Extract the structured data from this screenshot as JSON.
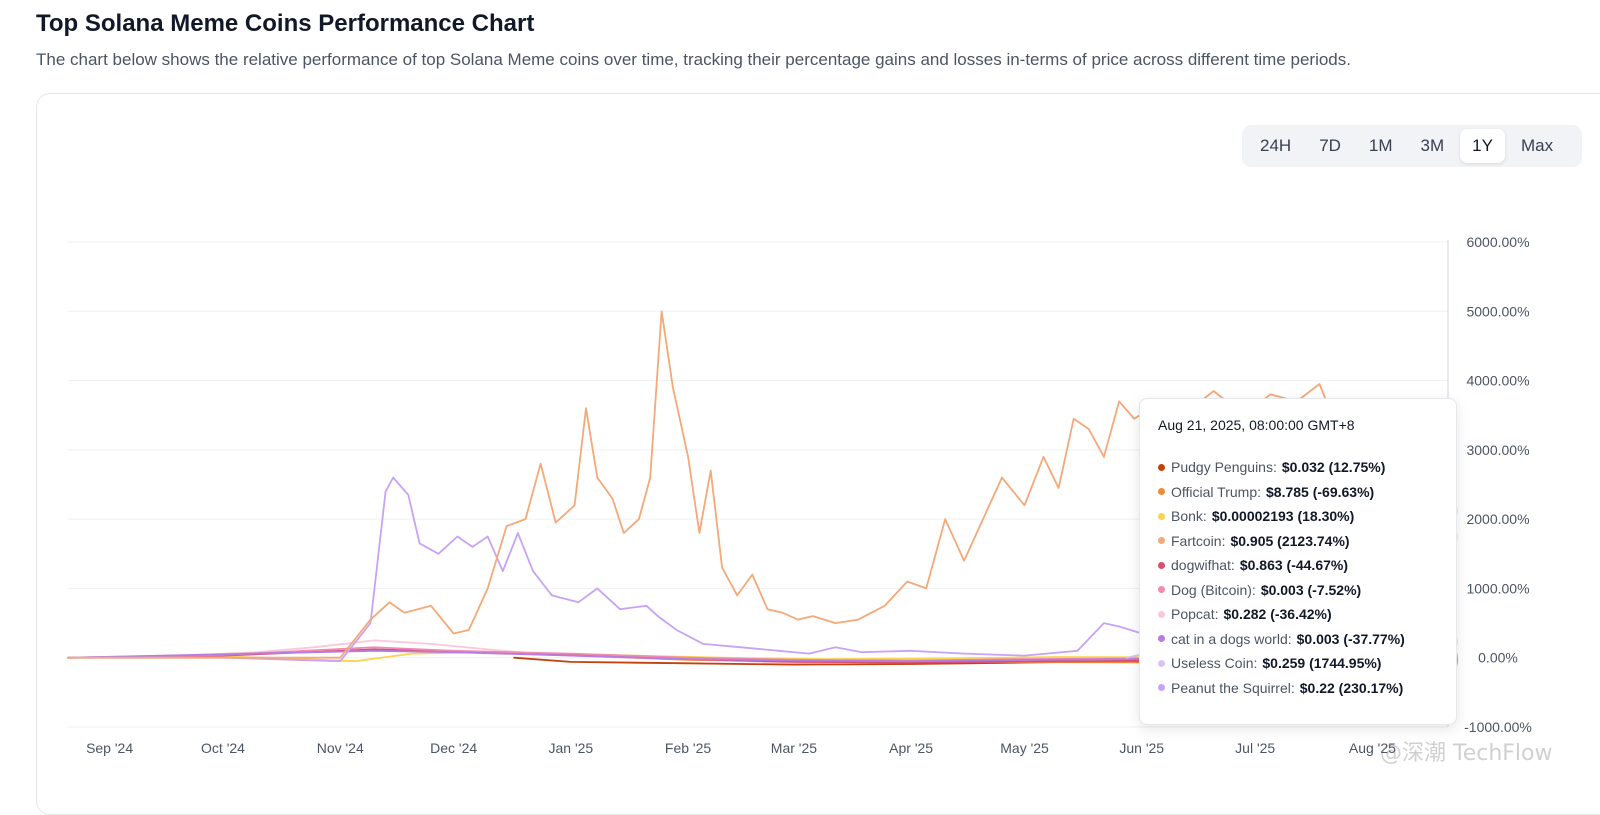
{
  "page": {
    "title": "Top Solana Meme Coins Performance Chart",
    "subtitle": "The chart below shows the relative performance of top Solana Meme coins over time, tracking their percentage gains and losses in-terms of price across different time periods."
  },
  "range_selector": {
    "options": [
      "24H",
      "7D",
      "1M",
      "3M",
      "1Y",
      "Max"
    ],
    "active": "1Y"
  },
  "tooltip": {
    "date": "Aug 21, 2025, 08:00:00 GMT+8",
    "rows": [
      {
        "name": "Pudgy Penguins:",
        "value": "$0.032 (12.75%)",
        "color": "#c2410c"
      },
      {
        "name": "Official Trump:",
        "value": "$8.785 (-69.63%)",
        "color": "#ea8a3a"
      },
      {
        "name": "Bonk:",
        "value": "$0.00002193 (18.30%)",
        "color": "#fcd34d"
      },
      {
        "name": "Fartcoin:",
        "value": "$0.905 (2123.74%)",
        "color": "#f5a878"
      },
      {
        "name": "dogwifhat:",
        "value": "$0.863 (-44.67%)",
        "color": "#db4f6e"
      },
      {
        "name": "Dog (Bitcoin):",
        "value": "$0.003 (-7.52%)",
        "color": "#f08ab0"
      },
      {
        "name": "Popcat:",
        "value": "$0.282 (-36.42%)",
        "color": "#fbc8d8"
      },
      {
        "name": "cat in a dogs world:",
        "value": "$0.003 (-37.77%)",
        "color": "#b57de0"
      },
      {
        "name": "Useless Coin:",
        "value": "$0.259 (1744.95%)",
        "color": "#d8c4f2"
      },
      {
        "name": "Peanut the Squirrel:",
        "value": "$0.22 (230.17%)",
        "color": "#c8a3f5"
      }
    ]
  },
  "watermark": "@深潮 TechFlow",
  "chart_data": {
    "type": "line",
    "x_labels": [
      "Sep '24",
      "Oct '24",
      "Nov '24",
      "Dec '24",
      "Jan '25",
      "Feb '25",
      "Mar '25",
      "Apr '25",
      "May '25",
      "Jun '25",
      "Jul '25",
      "Aug '25"
    ],
    "y_ticks": [
      "6000.00%",
      "5000.00%",
      "4000.00%",
      "3000.00%",
      "2000.00%",
      "1000.00%",
      "0.00%",
      "-1000.00%"
    ],
    "ylim": [
      -1000,
      6000
    ],
    "xlim": [
      "2024-08-21",
      "2025-08-21"
    ],
    "grid": true,
    "y_axis_position": "right",
    "series": [
      {
        "name": "Fartcoin",
        "color": "#f5a878",
        "x": [
          "2024-08-21",
          "2024-10-01",
          "2024-11-01",
          "2024-11-09",
          "2024-11-14",
          "2024-11-18",
          "2024-11-25",
          "2024-12-01",
          "2024-12-05",
          "2024-12-10",
          "2024-12-15",
          "2024-12-20",
          "2024-12-24",
          "2024-12-28",
          "2025-01-02",
          "2025-01-05",
          "2025-01-08",
          "2025-01-12",
          "2025-01-15",
          "2025-01-19",
          "2025-01-22",
          "2025-01-25",
          "2025-01-28",
          "2025-02-01",
          "2025-02-04",
          "2025-02-07",
          "2025-02-10",
          "2025-02-14",
          "2025-02-18",
          "2025-02-22",
          "2025-02-26",
          "2025-03-02",
          "2025-03-06",
          "2025-03-12",
          "2025-03-18",
          "2025-03-25",
          "2025-03-31",
          "2025-04-05",
          "2025-04-10",
          "2025-04-15",
          "2025-04-20",
          "2025-04-25",
          "2025-05-01",
          "2025-05-06",
          "2025-05-10",
          "2025-05-14",
          "2025-05-18",
          "2025-05-22",
          "2025-05-26",
          "2025-05-30",
          "2025-06-05",
          "2025-06-12",
          "2025-06-20",
          "2025-06-28",
          "2025-07-05",
          "2025-07-12",
          "2025-07-18",
          "2025-07-22",
          "2025-07-27",
          "2025-08-02",
          "2025-08-08",
          "2025-08-14",
          "2025-08-21"
        ],
        "y": [
          0,
          0,
          0,
          550,
          800,
          650,
          750,
          350,
          400,
          1000,
          1900,
          2000,
          2800,
          1950,
          2200,
          3600,
          2600,
          2300,
          1800,
          2000,
          2600,
          5000,
          3900,
          2900,
          1800,
          2700,
          1300,
          900,
          1200,
          700,
          650,
          550,
          600,
          500,
          550,
          750,
          1100,
          1000,
          2000,
          1400,
          2000,
          2600,
          2200,
          2900,
          2450,
          3450,
          3300,
          2900,
          3700,
          3450,
          3650,
          3500,
          3850,
          3500,
          3800,
          3700,
          3950,
          3400,
          3200,
          3100,
          2900,
          2400,
          2124
        ]
      },
      {
        "name": "Peanut the Squirrel",
        "color": "#c8a3f5",
        "x": [
          "2024-08-21",
          "2024-10-01",
          "2024-11-01",
          "2024-11-09",
          "2024-11-13",
          "2024-11-15",
          "2024-11-19",
          "2024-11-22",
          "2024-11-27",
          "2024-12-02",
          "2024-12-06",
          "2024-12-10",
          "2024-12-14",
          "2024-12-18",
          "2024-12-22",
          "2024-12-27",
          "2025-01-03",
          "2025-01-08",
          "2025-01-14",
          "2025-01-21",
          "2025-01-24",
          "2025-01-29",
          "2025-02-05",
          "2025-02-15",
          "2025-02-25",
          "2025-03-05",
          "2025-03-12",
          "2025-03-19",
          "2025-04-01",
          "2025-04-15",
          "2025-05-01",
          "2025-05-15",
          "2025-05-22",
          "2025-05-26",
          "2025-06-01",
          "2025-06-10",
          "2025-06-20",
          "2025-07-01",
          "2025-07-10",
          "2025-07-20",
          "2025-08-01",
          "2025-08-10",
          "2025-08-17",
          "2025-08-21"
        ],
        "y": [
          0,
          0,
          -50,
          500,
          2400,
          2600,
          2350,
          1650,
          1500,
          1750,
          1600,
          1750,
          1250,
          1800,
          1250,
          900,
          800,
          1000,
          700,
          750,
          600,
          400,
          200,
          150,
          100,
          60,
          150,
          80,
          100,
          60,
          30,
          100,
          500,
          450,
          350,
          150,
          100,
          200,
          150,
          1000,
          250,
          200,
          220,
          230
        ]
      },
      {
        "name": "Useless Coin",
        "color": "#d8c4f2",
        "x": [
          "2025-05-28",
          "2025-06-05",
          "2025-06-15",
          "2025-06-25",
          "2025-07-05",
          "2025-07-15",
          "2025-07-25",
          "2025-08-02",
          "2025-08-10",
          "2025-08-16",
          "2025-08-21"
        ],
        "y": [
          0,
          100,
          300,
          600,
          900,
          1300,
          1800,
          2300,
          2200,
          2000,
          1745
        ]
      },
      {
        "name": "Popcat",
        "color": "#fbc8d8",
        "x": [
          "2024-08-21",
          "2024-09-15",
          "2024-10-10",
          "2024-10-25",
          "2024-11-10",
          "2024-11-25",
          "2024-12-10",
          "2024-12-25",
          "2025-01-15",
          "2025-02-15",
          "2025-03-15",
          "2025-04-15",
          "2025-05-15",
          "2025-06-15",
          "2025-07-15",
          "2025-08-21"
        ],
        "y": [
          0,
          20,
          80,
          150,
          250,
          200,
          120,
          50,
          0,
          -50,
          -100,
          -80,
          -60,
          -40,
          -30,
          -36
        ]
      },
      {
        "name": "Pudgy Penguins",
        "color": "#c2410c",
        "x": [
          "2024-12-17",
          "2025-01-01",
          "2025-02-01",
          "2025-03-01",
          "2025-04-01",
          "2025-05-01",
          "2025-06-01",
          "2025-07-01",
          "2025-08-01",
          "2025-08-21"
        ],
        "y": [
          0,
          -60,
          -80,
          -100,
          -90,
          -70,
          -40,
          -20,
          5,
          13
        ]
      },
      {
        "name": "Official Trump",
        "color": "#ea8a3a",
        "x": [
          "2025-01-18",
          "2025-02-01",
          "2025-03-01",
          "2025-04-01",
          "2025-05-01",
          "2025-06-01",
          "2025-07-01",
          "2025-08-01",
          "2025-08-21"
        ],
        "y": [
          0,
          -30,
          -50,
          -60,
          -65,
          -66,
          -68,
          -69,
          -70
        ]
      },
      {
        "name": "Bonk",
        "color": "#fcd34d",
        "x": [
          "2024-08-21",
          "2024-10-01",
          "2024-11-05",
          "2024-11-20",
          "2024-12-10",
          "2025-01-10",
          "2025-02-10",
          "2025-03-10",
          "2025-04-10",
          "2025-05-10",
          "2025-06-10",
          "2025-07-10",
          "2025-08-21"
        ],
        "y": [
          0,
          20,
          -50,
          60,
          80,
          40,
          0,
          -20,
          -10,
          10,
          5,
          30,
          18
        ]
      },
      {
        "name": "dogwifhat",
        "color": "#db4f6e",
        "x": [
          "2024-08-21",
          "2024-10-01",
          "2024-11-10",
          "2024-12-01",
          "2025-01-01",
          "2025-02-01",
          "2025-03-01",
          "2025-04-01",
          "2025-05-01",
          "2025-06-01",
          "2025-07-01",
          "2025-08-21"
        ],
        "y": [
          0,
          30,
          120,
          90,
          40,
          -20,
          -60,
          -70,
          -55,
          -45,
          -40,
          -45
        ]
      },
      {
        "name": "Dog (Bitcoin)",
        "color": "#f08ab0",
        "x": [
          "2024-08-21",
          "2024-10-01",
          "2024-11-10",
          "2024-12-01",
          "2025-01-01",
          "2025-02-01",
          "2025-03-01",
          "2025-04-01",
          "2025-05-01",
          "2025-06-01",
          "2025-07-01",
          "2025-08-21"
        ],
        "y": [
          0,
          40,
          150,
          100,
          60,
          0,
          -30,
          -40,
          -20,
          -10,
          0,
          -8
        ]
      },
      {
        "name": "cat in a dogs world",
        "color": "#b57de0",
        "x": [
          "2024-08-21",
          "2024-10-01",
          "2024-11-10",
          "2024-12-01",
          "2025-01-01",
          "2025-02-01",
          "2025-03-01",
          "2025-04-01",
          "2025-05-01",
          "2025-06-01",
          "2025-07-01",
          "2025-08-21"
        ],
        "y": [
          0,
          50,
          100,
          80,
          30,
          -20,
          -40,
          -50,
          -30,
          -20,
          -30,
          -38
        ]
      }
    ]
  }
}
